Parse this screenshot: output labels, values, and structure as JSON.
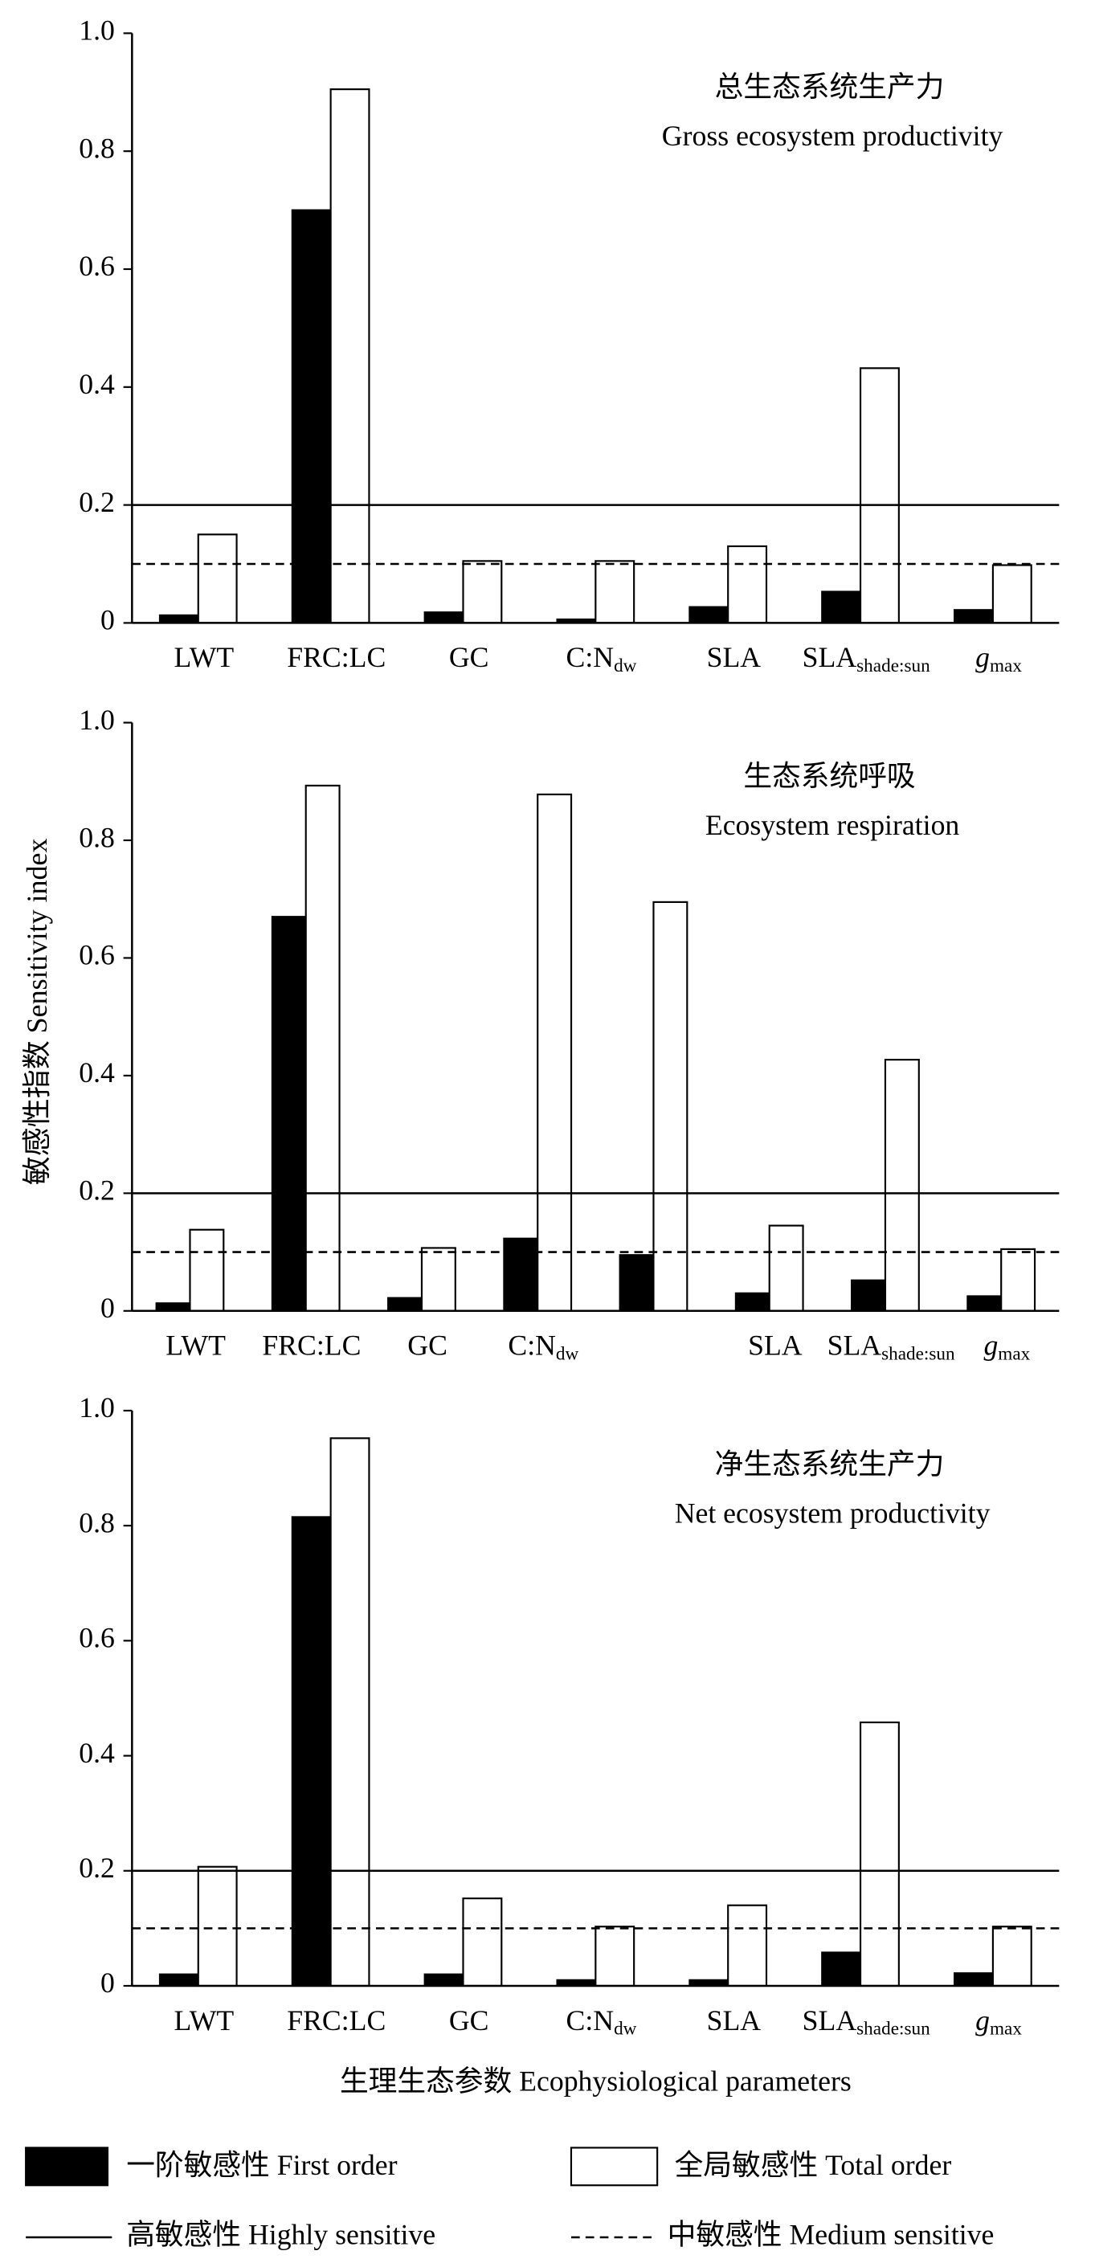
{
  "y_label": "敏感性指数  Sensitivity index",
  "x_label": "生理生态参数  Ecophysiological parameters",
  "series_styles": [
    {
      "name": "一阶敏感性  First order",
      "color": "#000000"
    },
    {
      "name": "全局敏感性  Total order",
      "color": "#ffffff"
    }
  ],
  "reference_lines": [
    {
      "name": "高敏感性  Highly sensitive",
      "value": 0.2,
      "style": "solid"
    },
    {
      "name": "中敏感性  Medium sensitive",
      "value": 0.1,
      "style": "dashed"
    }
  ],
  "chart_data": [
    {
      "type": "bar",
      "title": "总生态系统生产力",
      "subtitle": "Gross ecosystem productivity",
      "categories": [
        "LWT",
        "FRC:LC",
        "GC",
        "C:N",
        "SLA",
        "SLA",
        "g"
      ],
      "category_subscripts": [
        null,
        null,
        null,
        "dw",
        null,
        "shade:sun",
        "max"
      ],
      "series": [
        {
          "values": [
            0.013,
            0.7,
            0.018,
            0.006,
            0.027,
            0.053,
            0.022
          ]
        },
        {
          "values": [
            0.15,
            0.905,
            0.105,
            0.105,
            0.13,
            0.432,
            0.098
          ]
        }
      ],
      "ylim": [
        0,
        1
      ],
      "yticks": [
        0,
        0.2,
        0.4,
        0.6,
        0.8,
        {
          "value": 1,
          "label": "1.0"
        }
      ]
    },
    {
      "type": "bar",
      "title": "生态系统呼吸",
      "subtitle": "Ecosystem respiration",
      "categories": [
        "LWT",
        "FRC:LC",
        "GC",
        "C:N",
        null,
        "SLA",
        "SLA",
        "g"
      ],
      "category_subscripts": [
        null,
        null,
        null,
        "dw",
        null,
        null,
        "shade:sun",
        "max"
      ],
      "series": [
        {
          "values": [
            0.013,
            0.67,
            0.022,
            0.123,
            0.095,
            0.03,
            0.052,
            0.025
          ]
        },
        {
          "values": [
            0.138,
            0.893,
            0.107,
            0.878,
            0.695,
            0.145,
            0.427,
            0.105
          ]
        }
      ],
      "ylim": [
        0,
        1
      ],
      "yticks": [
        0,
        0.2,
        0.4,
        0.6,
        0.8,
        {
          "value": 1,
          "label": "1.0"
        }
      ]
    },
    {
      "type": "bar",
      "title": "净生态系统生产力",
      "subtitle": "Net ecosystem productivity",
      "categories": [
        "LWT",
        "FRC:LC",
        "GC",
        "C:N",
        "SLA",
        "SLA",
        "g"
      ],
      "category_subscripts": [
        null,
        null,
        null,
        "dw",
        null,
        "shade:sun",
        "max"
      ],
      "series": [
        {
          "values": [
            0.02,
            0.815,
            0.02,
            0.01,
            0.01,
            0.058,
            0.022
          ]
        },
        {
          "values": [
            0.207,
            0.952,
            0.152,
            0.103,
            0.14,
            0.458,
            0.103
          ]
        }
      ],
      "ylim": [
        0,
        1
      ],
      "yticks": [
        0,
        0.2,
        0.4,
        0.6,
        0.8,
        {
          "value": 1,
          "label": "1.0"
        }
      ]
    }
  ]
}
